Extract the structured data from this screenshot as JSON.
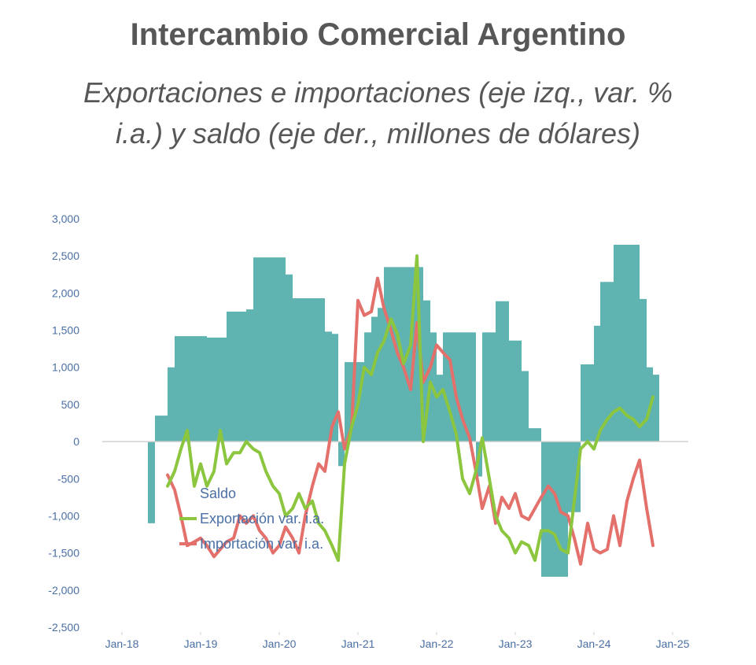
{
  "header": {
    "title": "Intercambio Comercial Argentino",
    "subtitle_line1": "Exportaciones e importaciones (eje izq., var. %",
    "subtitle_line2": "i.a.) y saldo (eje der., millones de dólares)"
  },
  "chart_data": {
    "type": "area",
    "title": "Intercambio Comercial Argentino",
    "subtitle": "Exportaciones e importaciones (eje izq., var. % i.a.) y saldo (eje der., millones de dólares)",
    "xlabel": "",
    "ylabel": "",
    "ylim": [
      -2500,
      3000
    ],
    "yticks": [
      3000,
      2500,
      2000,
      1500,
      1000,
      500,
      0,
      -500,
      -1000,
      -1500,
      -2000,
      -2500
    ],
    "ytick_labels": [
      "3,000",
      "2,500",
      "2,000",
      "1,500",
      "1,000",
      "500",
      "0",
      "-500",
      "-1,000",
      "-1,500",
      "-2,000",
      "-2,500"
    ],
    "xlim": [
      2017.75,
      2025.2
    ],
    "xticks": [
      2018,
      2019,
      2020,
      2021,
      2022,
      2023,
      2024,
      2025
    ],
    "xtick_labels": [
      "Jan-18",
      "Jan-19",
      "Jan-20",
      "Jan-21",
      "Jan-22",
      "Jan-23",
      "Jan-24",
      "Jan-25"
    ],
    "grid": false,
    "legend_position": "bottom-left",
    "colors": {
      "saldo": "#5fb3b0",
      "export": "#8cc63f",
      "import": "#e3706b",
      "axis": "#d0d0d0",
      "text": "#4a6fa5"
    },
    "series": [
      {
        "name": "Saldo",
        "kind": "step-area",
        "x": [
          2018.33,
          2018.42,
          2018.58,
          2018.67,
          2019.08,
          2019.33,
          2019.58,
          2019.67,
          2020.0,
          2020.08,
          2020.17,
          2020.58,
          2020.67,
          2020.75,
          2020.83,
          2021.08,
          2021.17,
          2021.25,
          2021.33,
          2021.83,
          2021.92,
          2022.0,
          2022.08,
          2022.5,
          2022.58,
          2022.75,
          2022.92,
          2023.08,
          2023.17,
          2023.33,
          2023.67,
          2023.83,
          2024.0,
          2024.08,
          2024.25,
          2024.42,
          2024.58,
          2024.67,
          2024.75,
          2024.83
        ],
        "values": [
          -1100,
          350,
          1000,
          1420,
          1400,
          1750,
          1780,
          2480,
          2480,
          2250,
          1930,
          1480,
          1450,
          -330,
          1070,
          1470,
          1680,
          1800,
          2350,
          1900,
          1470,
          900,
          1470,
          -470,
          1470,
          1890,
          1360,
          950,
          180,
          -1820,
          -950,
          1040,
          1560,
          2150,
          2650,
          2650,
          1920,
          1000,
          900,
          0
        ]
      },
      {
        "name": "Exportación var. i.a.",
        "kind": "line",
        "x": [
          2018.58,
          2018.67,
          2018.75,
          2018.83,
          2018.92,
          2019.0,
          2019.08,
          2019.17,
          2019.25,
          2019.33,
          2019.42,
          2019.5,
          2019.58,
          2019.67,
          2019.75,
          2019.83,
          2019.92,
          2020.0,
          2020.08,
          2020.17,
          2020.25,
          2020.33,
          2020.42,
          2020.5,
          2020.58,
          2020.67,
          2020.75,
          2020.83,
          2020.92,
          2021.0,
          2021.08,
          2021.17,
          2021.25,
          2021.33,
          2021.42,
          2021.5,
          2021.58,
          2021.67,
          2021.75,
          2021.83,
          2021.92,
          2022.0,
          2022.08,
          2022.17,
          2022.25,
          2022.33,
          2022.42,
          2022.5,
          2022.58,
          2022.67,
          2022.75,
          2022.83,
          2022.92,
          2023.0,
          2023.08,
          2023.17,
          2023.25,
          2023.33,
          2023.42,
          2023.5,
          2023.58,
          2023.67,
          2023.75,
          2023.83,
          2023.92,
          2024.0,
          2024.08,
          2024.17,
          2024.25,
          2024.33,
          2024.42,
          2024.5,
          2024.58,
          2024.67,
          2024.75
        ],
        "values": [
          -600,
          -400,
          -100,
          150,
          -600,
          -300,
          -600,
          -400,
          150,
          -300,
          -150,
          -150,
          0,
          -100,
          -150,
          -400,
          -600,
          -700,
          -1000,
          -900,
          -700,
          -900,
          -800,
          -1100,
          -1200,
          -1400,
          -1600,
          -300,
          200,
          500,
          1000,
          900,
          1200,
          1350,
          1650,
          1450,
          1050,
          1300,
          2500,
          0,
          800,
          600,
          700,
          400,
          100,
          -500,
          -700,
          -400,
          50,
          -500,
          -1000,
          -1200,
          -1300,
          -1500,
          -1350,
          -1400,
          -1600,
          -1200,
          -1200,
          -1250,
          -1450,
          -1500,
          -800,
          -100,
          0,
          -100,
          150,
          300,
          400,
          450,
          350,
          300,
          200,
          300,
          600
        ]
      },
      {
        "name": "Importación var. i.a.",
        "kind": "line",
        "x": [
          2018.58,
          2018.67,
          2018.75,
          2018.83,
          2018.92,
          2019.0,
          2019.08,
          2019.17,
          2019.25,
          2019.33,
          2019.42,
          2019.5,
          2019.58,
          2019.67,
          2019.75,
          2019.83,
          2019.92,
          2020.0,
          2020.08,
          2020.17,
          2020.25,
          2020.33,
          2020.42,
          2020.5,
          2020.58,
          2020.67,
          2020.75,
          2020.83,
          2020.92,
          2021.0,
          2021.08,
          2021.17,
          2021.25,
          2021.33,
          2021.42,
          2021.5,
          2021.58,
          2021.67,
          2021.75,
          2021.83,
          2021.92,
          2022.0,
          2022.08,
          2022.17,
          2022.25,
          2022.33,
          2022.42,
          2022.5,
          2022.58,
          2022.67,
          2022.75,
          2022.83,
          2022.92,
          2023.0,
          2023.08,
          2023.17,
          2023.25,
          2023.33,
          2023.42,
          2023.5,
          2023.58,
          2023.67,
          2023.75,
          2023.83,
          2023.92,
          2024.0,
          2024.08,
          2024.17,
          2024.25,
          2024.33,
          2024.42,
          2024.5,
          2024.58,
          2024.67,
          2024.75
        ],
        "values": [
          -450,
          -650,
          -1000,
          -1400,
          -1350,
          -1300,
          -1400,
          -1550,
          -1450,
          -1350,
          -1300,
          -1000,
          -1100,
          -1000,
          -1200,
          -1300,
          -1500,
          -1400,
          -1150,
          -1300,
          -1500,
          -1000,
          -600,
          -300,
          -400,
          200,
          400,
          -100,
          200,
          1900,
          1700,
          1750,
          2200,
          1800,
          1500,
          1200,
          1000,
          700,
          1600,
          800,
          1000,
          1300,
          1200,
          1100,
          600,
          300,
          50,
          -400,
          -900,
          -600,
          -1100,
          -750,
          -900,
          -700,
          -1000,
          -1050,
          -900,
          -750,
          -600,
          -700,
          -950,
          -1000,
          -1300,
          -1650,
          -1100,
          -1450,
          -1500,
          -1450,
          -1000,
          -1400,
          -800,
          -500,
          -250,
          -900,
          -1400
        ]
      }
    ]
  }
}
